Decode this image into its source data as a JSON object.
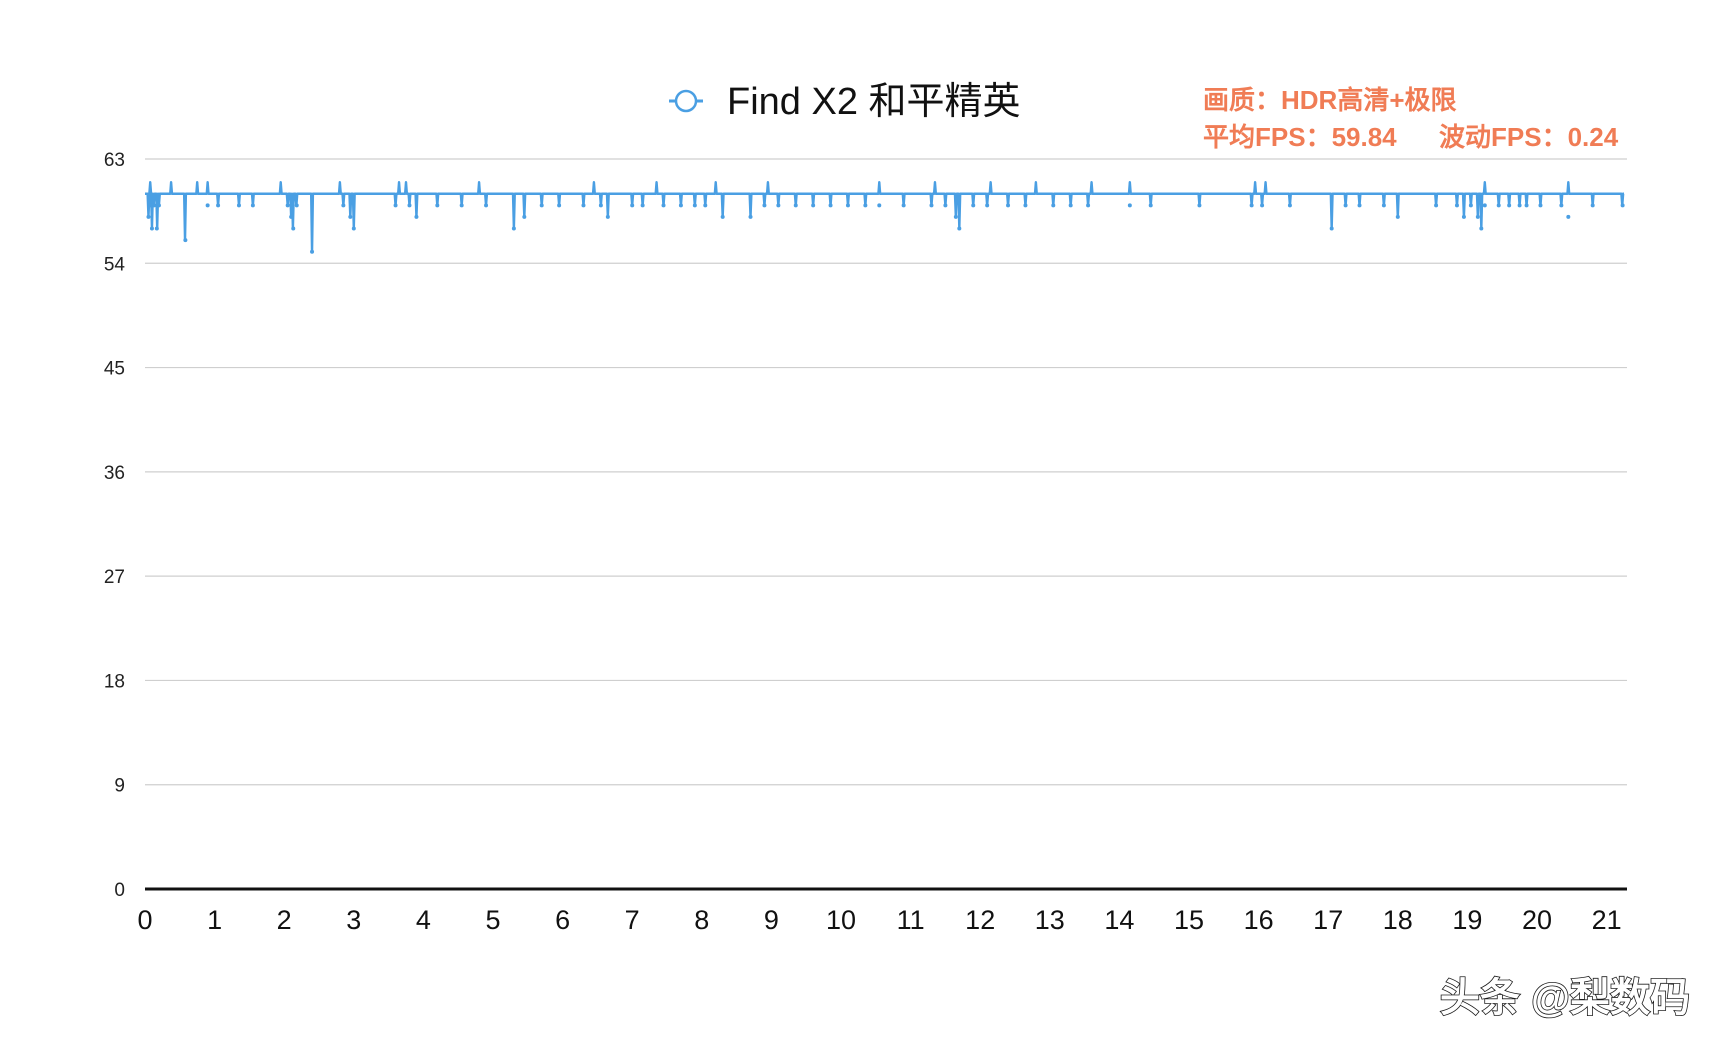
{
  "chart_data": {
    "type": "line",
    "title": "",
    "xlabel": "",
    "ylabel": "",
    "ylim": [
      0,
      63
    ],
    "xlim": [
      0,
      21.25
    ],
    "grid": true,
    "legend_position": "top-center",
    "y_ticks": [
      "0",
      "9",
      "18",
      "27",
      "36",
      "45",
      "54",
      "63"
    ],
    "x_ticks": [
      "0",
      "1",
      "2",
      "3",
      "4",
      "5",
      "6",
      "7",
      "8",
      "9",
      "10",
      "11",
      "12",
      "13",
      "14",
      "15",
      "16",
      "17",
      "18",
      "19",
      "20",
      "21"
    ],
    "series": [
      {
        "name": "Find X2  和平精英",
        "color": "#4a9fe3",
        "baseline": 60,
        "sample_step": 0.0125,
        "dips": [
          [
            0.05,
            58
          ],
          [
            0.08,
            59
          ],
          [
            0.1,
            57
          ],
          [
            0.13,
            59
          ],
          [
            0.17,
            57
          ],
          [
            0.2,
            59
          ],
          [
            0.58,
            56
          ],
          [
            0.9,
            59
          ],
          [
            1.05,
            59
          ],
          [
            1.35,
            59
          ],
          [
            1.55,
            59
          ],
          [
            2.05,
            59
          ],
          [
            2.1,
            58
          ],
          [
            2.13,
            57
          ],
          [
            2.18,
            59
          ],
          [
            2.4,
            55
          ],
          [
            2.85,
            59
          ],
          [
            2.95,
            58
          ],
          [
            3.0,
            57
          ],
          [
            3.6,
            59
          ],
          [
            3.8,
            59
          ],
          [
            3.9,
            58
          ],
          [
            4.2,
            59
          ],
          [
            4.55,
            59
          ],
          [
            4.9,
            59
          ],
          [
            5.3,
            57
          ],
          [
            5.45,
            58
          ],
          [
            5.7,
            59
          ],
          [
            5.95,
            59
          ],
          [
            6.3,
            59
          ],
          [
            6.55,
            59
          ],
          [
            6.65,
            58
          ],
          [
            7.0,
            59
          ],
          [
            7.15,
            59
          ],
          [
            7.45,
            59
          ],
          [
            7.7,
            59
          ],
          [
            7.9,
            59
          ],
          [
            8.05,
            59
          ],
          [
            8.3,
            58
          ],
          [
            8.7,
            58
          ],
          [
            8.9,
            59
          ],
          [
            9.1,
            59
          ],
          [
            9.35,
            59
          ],
          [
            9.6,
            59
          ],
          [
            9.85,
            59
          ],
          [
            10.1,
            59
          ],
          [
            10.35,
            59
          ],
          [
            10.55,
            59
          ],
          [
            10.9,
            59
          ],
          [
            11.3,
            59
          ],
          [
            11.5,
            59
          ],
          [
            11.65,
            58
          ],
          [
            11.7,
            57
          ],
          [
            11.9,
            59
          ],
          [
            12.1,
            59
          ],
          [
            12.4,
            59
          ],
          [
            12.65,
            59
          ],
          [
            13.05,
            59
          ],
          [
            13.3,
            59
          ],
          [
            13.55,
            59
          ],
          [
            14.15,
            59
          ],
          [
            14.45,
            59
          ],
          [
            15.15,
            59
          ],
          [
            15.9,
            59
          ],
          [
            16.05,
            59
          ],
          [
            16.45,
            59
          ],
          [
            17.05,
            57
          ],
          [
            17.25,
            59
          ],
          [
            17.45,
            59
          ],
          [
            17.8,
            59
          ],
          [
            18.0,
            58
          ],
          [
            18.55,
            59
          ],
          [
            18.85,
            59
          ],
          [
            18.95,
            58
          ],
          [
            19.05,
            59
          ],
          [
            19.15,
            58
          ],
          [
            19.2,
            57
          ],
          [
            19.25,
            59
          ],
          [
            19.45,
            59
          ],
          [
            19.6,
            59
          ],
          [
            19.75,
            59
          ],
          [
            19.85,
            59
          ],
          [
            20.05,
            59
          ],
          [
            20.35,
            59
          ],
          [
            20.45,
            58
          ],
          [
            20.8,
            59
          ],
          [
            21.23,
            59
          ]
        ],
        "spikes": [
          [
            0.07,
            61
          ],
          [
            0.38,
            61
          ],
          [
            0.75,
            61
          ],
          [
            0.9,
            61
          ],
          [
            1.95,
            61
          ],
          [
            2.8,
            61
          ],
          [
            3.65,
            61
          ],
          [
            3.75,
            61
          ],
          [
            4.8,
            61
          ],
          [
            6.45,
            61
          ],
          [
            7.35,
            61
          ],
          [
            8.2,
            61
          ],
          [
            8.95,
            61
          ],
          [
            10.55,
            61
          ],
          [
            11.35,
            61
          ],
          [
            12.15,
            61
          ],
          [
            12.8,
            61
          ],
          [
            13.6,
            61
          ],
          [
            14.15,
            61
          ],
          [
            15.95,
            61
          ],
          [
            16.1,
            61
          ],
          [
            19.25,
            61
          ],
          [
            20.45,
            61
          ]
        ]
      }
    ],
    "annotations": [
      {
        "text": "画质：HDR高清+极限",
        "color": "#f07c55"
      },
      {
        "text": "平均FPS：59.84",
        "color": "#f07c55"
      },
      {
        "text": "波动FPS：0.24",
        "color": "#f07c55"
      }
    ]
  },
  "watermark": "头条 @梨数码"
}
